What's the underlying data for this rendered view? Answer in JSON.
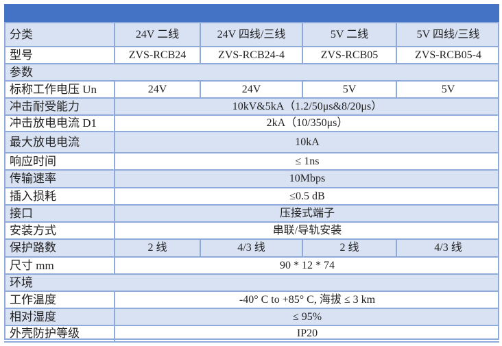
{
  "header_color": "#4472c4",
  "row_colors": {
    "shaded": "#d9e2f3",
    "plain": "#ffffff",
    "border": "#8eaadb"
  },
  "rows": [
    {
      "label": "分类",
      "cells": [
        "24V 二线",
        "24V 四线/三线",
        "5V 二线",
        "5V 四线/三线"
      ],
      "shade": "b",
      "h": 35
    },
    {
      "label": "型号",
      "cells": [
        "ZVS-RCB24",
        "ZVS-RCB24-4",
        "ZVS-RCB05",
        "ZVS-RCB05-4"
      ],
      "shade": "w",
      "h": 25
    },
    {
      "label": "参数",
      "section": true,
      "shade": "b",
      "h": 25
    },
    {
      "label": "标称工作电压 Un",
      "cells": [
        "24V",
        "24V",
        "5V",
        "5V"
      ],
      "shade": "w",
      "h": 25
    },
    {
      "label": "冲击耐受能力",
      "value": "10kV&5kA（1.2/50μs&8/20μs）",
      "shade": "b",
      "h": 25
    },
    {
      "label": "冲击放电电流 D1",
      "value": "2kA（10/350μs）",
      "shade": "w",
      "h": 24
    },
    {
      "label": "最大放电电流",
      "value": "10kA",
      "shade": "b",
      "h": 31
    },
    {
      "label": "响应时间",
      "value": "≤ 1ns",
      "shade": "w",
      "h": 25
    },
    {
      "label": "传输速率",
      "value": "10Mbps",
      "shade": "b",
      "h": 26
    },
    {
      "label": "插入损耗",
      "value": "≤0.5 dB",
      "shade": "w",
      "h": 25
    },
    {
      "label": "接口",
      "value": "压接式端子",
      "shade": "b",
      "h": 25
    },
    {
      "label": "安装方式",
      "value": "串联/导轨安装",
      "shade": "w",
      "h": 25
    },
    {
      "label": "保护路数",
      "cells": [
        "2 线",
        "4/3 线",
        "2 线",
        "4/3 线"
      ],
      "shade": "b",
      "h": 26
    },
    {
      "label": "尺寸 mm",
      "value": "90 * 12 * 74",
      "shade": "w",
      "h": 25
    },
    {
      "label": "环境",
      "section": true,
      "shade": "b",
      "h": 25
    },
    {
      "label": "工作温度",
      "value": "-40° C to +85° C, 海拔 ≤ 3 km",
      "shade": "w",
      "h": 25
    },
    {
      "label": "相对湿度",
      "value": "≤ 95%",
      "shade": "b",
      "h": 25
    },
    {
      "label": "外壳防护等级",
      "value": "IP20",
      "shade": "w",
      "h": 24
    }
  ]
}
